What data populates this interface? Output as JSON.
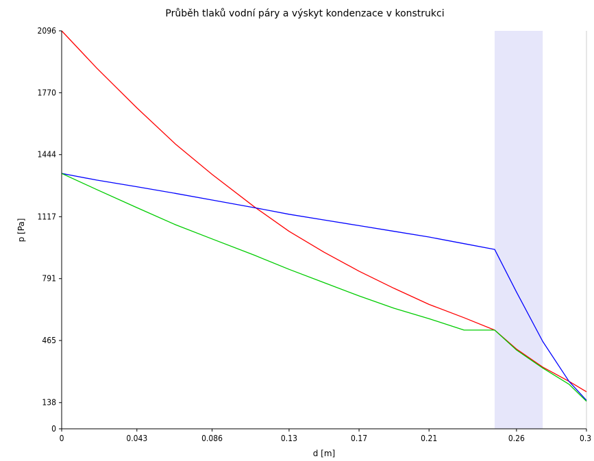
{
  "chart_data": {
    "type": "line",
    "title": "Průběh tlaků vodní páry a výskyt kondenzace v konstrukci",
    "xlabel": "d [m]",
    "ylabel": "p [Pa]",
    "xlim": [
      0,
      0.3
    ],
    "ylim": [
      0,
      2096
    ],
    "x_ticks": [
      {
        "value": 0,
        "label": "0"
      },
      {
        "value": 0.043,
        "label": "0.043"
      },
      {
        "value": 0.086,
        "label": "0.086"
      },
      {
        "value": 0.13,
        "label": "0.13"
      },
      {
        "value": 0.17,
        "label": "0.17"
      },
      {
        "value": 0.21,
        "label": "0.21"
      },
      {
        "value": 0.26,
        "label": "0.26"
      },
      {
        "value": 0.3,
        "label": "0.3"
      }
    ],
    "y_ticks": [
      {
        "value": 0,
        "label": "0"
      },
      {
        "value": 138,
        "label": "138"
      },
      {
        "value": 465,
        "label": "465"
      },
      {
        "value": 791,
        "label": "791"
      },
      {
        "value": 1117,
        "label": "1117"
      },
      {
        "value": 1444,
        "label": "1444"
      },
      {
        "value": 1770,
        "label": "1770"
      },
      {
        "value": 2096,
        "label": "2096"
      }
    ],
    "condensation_zone": {
      "x_start": 0.2475,
      "x_end": 0.275,
      "color": "#e6e6fa"
    },
    "right_boundary_x": 0.3,
    "series": [
      {
        "color": "#ff0000",
        "x": [
          0,
          0.02,
          0.043,
          0.065,
          0.086,
          0.11,
          0.13,
          0.15,
          0.17,
          0.19,
          0.21,
          0.23,
          0.2475,
          0.26,
          0.275,
          0.29,
          0.3
        ],
        "y": [
          2096,
          1900,
          1690,
          1500,
          1340,
          1170,
          1040,
          930,
          830,
          740,
          655,
          585,
          520,
          420,
          325,
          250,
          195
        ]
      },
      {
        "color": "#0000ff",
        "x": [
          0,
          0.02,
          0.043,
          0.065,
          0.086,
          0.11,
          0.13,
          0.15,
          0.17,
          0.19,
          0.21,
          0.23,
          0.2475,
          0.26,
          0.275,
          0.29,
          0.3
        ],
        "y": [
          1345,
          1310,
          1275,
          1240,
          1205,
          1165,
          1130,
          1100,
          1070,
          1040,
          1010,
          975,
          945,
          720,
          460,
          250,
          150
        ]
      },
      {
        "color": "#00cc00",
        "x": [
          0,
          0.02,
          0.043,
          0.065,
          0.086,
          0.11,
          0.13,
          0.15,
          0.17,
          0.19,
          0.21,
          0.23,
          0.2475,
          0.26,
          0.275,
          0.29,
          0.3
        ],
        "y": [
          1345,
          1260,
          1165,
          1075,
          1000,
          915,
          840,
          770,
          700,
          635,
          580,
          520,
          520,
          415,
          320,
          235,
          145
        ]
      }
    ]
  }
}
